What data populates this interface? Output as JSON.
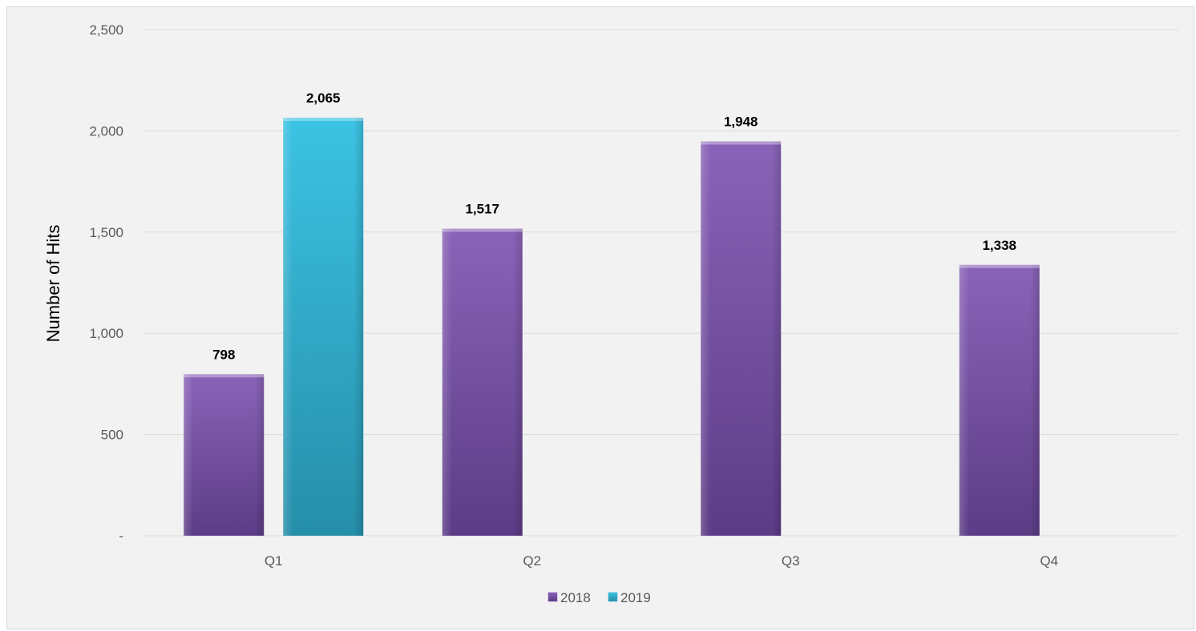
{
  "chart_data": {
    "type": "bar",
    "title": "",
    "xlabel": "",
    "ylabel": "Number of Hits",
    "categories": [
      "Q1",
      "Q2",
      "Q3",
      "Q4"
    ],
    "ylim": [
      0,
      2500
    ],
    "yticks": [
      0,
      500,
      1000,
      1500,
      2000,
      2500
    ],
    "ytick_labels": [
      "-",
      "500",
      "1,000",
      "1,500",
      "2,000",
      "2,500"
    ],
    "grid": true,
    "legend_position": "bottom",
    "series": [
      {
        "name": "2018",
        "color": "#7f5aad",
        "values": [
          798,
          1517,
          1948,
          1338
        ],
        "labels": [
          "798",
          "1,517",
          "1,948",
          "1,338"
        ]
      },
      {
        "name": "2019",
        "color": "#31aecf",
        "values": [
          2065,
          null,
          null,
          null
        ],
        "labels": [
          "2,065",
          "",
          "",
          ""
        ]
      }
    ]
  }
}
